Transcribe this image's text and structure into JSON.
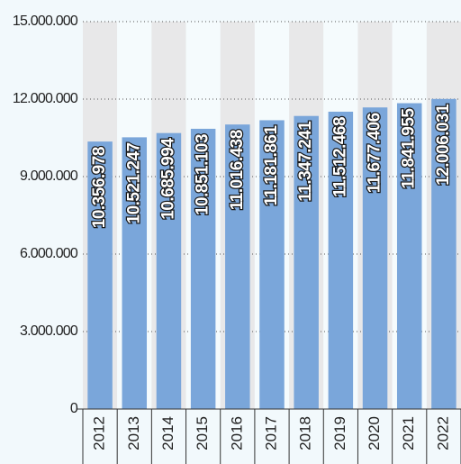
{
  "chart_data": {
    "type": "bar",
    "categories": [
      "2012",
      "2013",
      "2014",
      "2015",
      "2016",
      "2017",
      "2018",
      "2019",
      "2020",
      "2021",
      "2022"
    ],
    "values": [
      10356978,
      10521247,
      10685994,
      10851103,
      11016438,
      11181861,
      11347241,
      11512468,
      11677406,
      11841955,
      12006031
    ],
    "value_labels": [
      "10.356.978",
      "10.521.247",
      "10.685.994",
      "10.851.103",
      "11.016.438",
      "11.181.861",
      "11.347.241",
      "11.512.468",
      "11.677.406",
      "11.841.955",
      "12.006.031"
    ],
    "color": "#7aa6da",
    "ylim": [
      0,
      15000000
    ],
    "yticks": [
      {
        "value": 0,
        "label": "0"
      },
      {
        "value": 3000000,
        "label": "3.000.000"
      },
      {
        "value": 6000000,
        "label": "6.000.000"
      },
      {
        "value": 9000000,
        "label": "9.000.000"
      },
      {
        "value": 12000000,
        "label": "12.000.000"
      },
      {
        "value": 15000000,
        "label": "15.000.000"
      }
    ],
    "grid": true
  }
}
